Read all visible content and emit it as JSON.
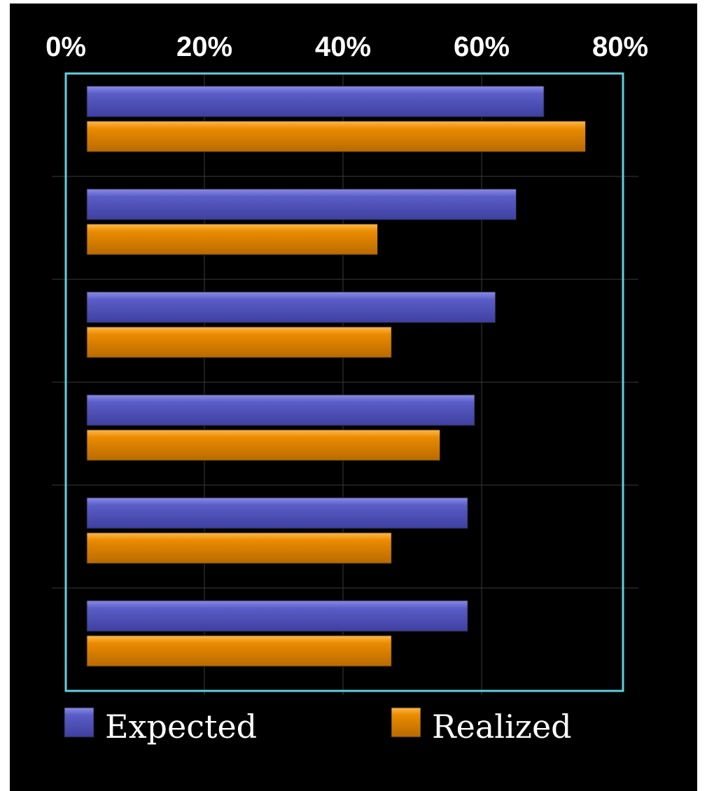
{
  "chart_data": {
    "type": "bar",
    "orientation": "horizontal",
    "title": "",
    "xlabel": "",
    "ylabel": "",
    "xlim": [
      0,
      80
    ],
    "x_ticks": [
      "0%",
      "20%",
      "40%",
      "60%",
      "80%"
    ],
    "grid": true,
    "legend_position": "bottom",
    "categories": [
      "",
      "",
      "",
      "",
      "",
      ""
    ],
    "series": [
      {
        "name": "Expected",
        "color": "#5a5dc6",
        "values": [
          69,
          65,
          62,
          59,
          58,
          58
        ]
      },
      {
        "name": "Realized",
        "color": "#ea8b00",
        "values": [
          75,
          45,
          47,
          54,
          47,
          47
        ]
      }
    ],
    "frame_color": "#5fd0e0",
    "background_color": "#000000"
  }
}
